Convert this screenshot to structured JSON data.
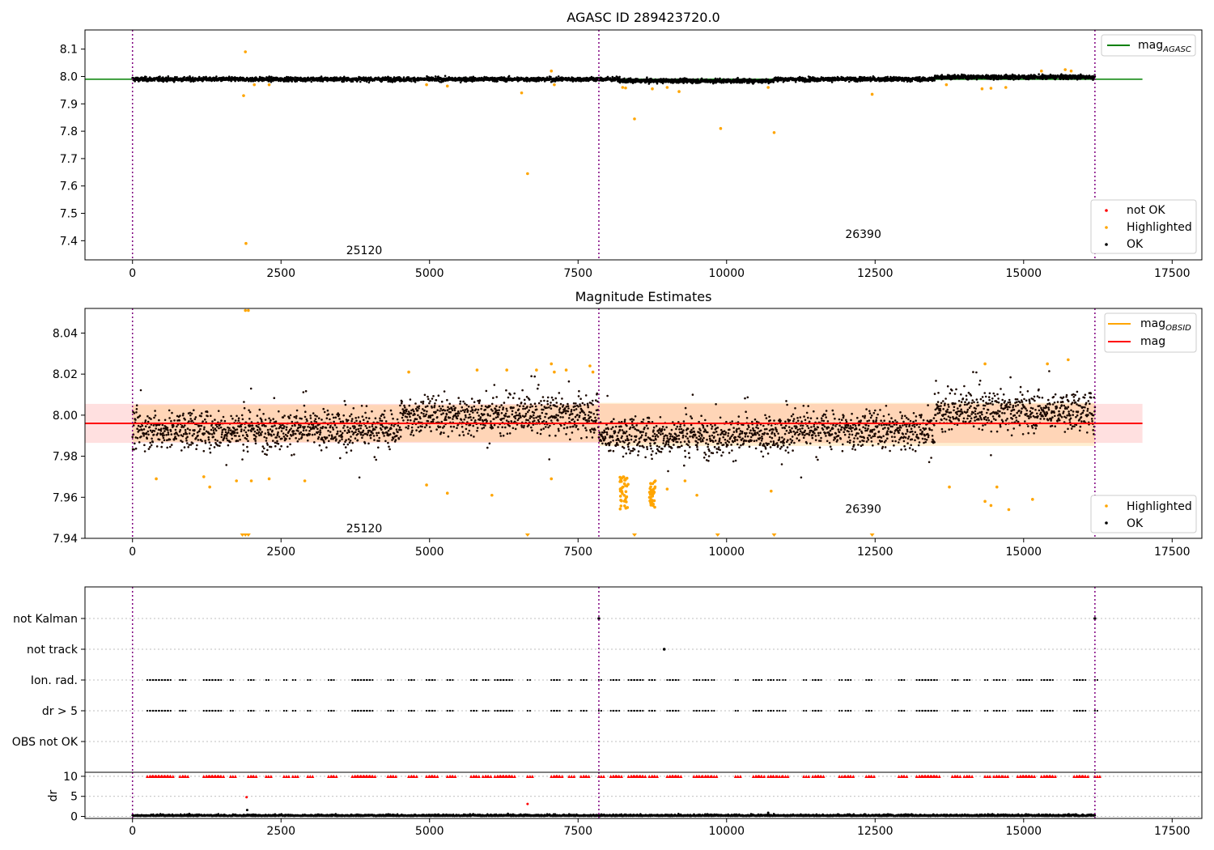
{
  "chart_data": [
    {
      "type": "scatter",
      "title": "AGASC ID 289423720.0",
      "xlim": [
        -800,
        18000
      ],
      "ylim": [
        7.33,
        8.17
      ],
      "xticks": [
        0,
        2500,
        5000,
        7500,
        10000,
        12500,
        15000,
        17500
      ],
      "yticks": [
        7.4,
        7.5,
        7.6,
        7.7,
        7.8,
        7.9,
        8.0,
        8.1
      ],
      "obsid_boundaries": [
        0,
        7850,
        16200
      ],
      "obsid_labels": [
        {
          "text": "25120",
          "x": 3900,
          "y": 7.35
        },
        {
          "text": "26390",
          "x": 12300,
          "y": 7.41
        }
      ],
      "reference_line": {
        "name": "mag_AGASC",
        "value": 7.99,
        "x_range": [
          -800,
          17000
        ],
        "color": "#008000"
      },
      "ok_band": {
        "center": 7.99,
        "spread": 0.012,
        "x_range": [
          0,
          16200
        ]
      },
      "highlighted_points": [
        {
          "x": 1900,
          "y": 8.09
        },
        {
          "x": 1870,
          "y": 7.93
        },
        {
          "x": 1910,
          "y": 7.39
        },
        {
          "x": 2050,
          "y": 7.97
        },
        {
          "x": 2300,
          "y": 7.97
        },
        {
          "x": 4950,
          "y": 7.97
        },
        {
          "x": 5300,
          "y": 7.965
        },
        {
          "x": 6550,
          "y": 7.94
        },
        {
          "x": 6650,
          "y": 7.645
        },
        {
          "x": 7050,
          "y": 8.02
        },
        {
          "x": 7100,
          "y": 7.97
        },
        {
          "x": 8250,
          "y": 7.96
        },
        {
          "x": 8300,
          "y": 7.958
        },
        {
          "x": 8450,
          "y": 7.845
        },
        {
          "x": 8750,
          "y": 7.955
        },
        {
          "x": 9000,
          "y": 7.96
        },
        {
          "x": 9200,
          "y": 7.945
        },
        {
          "x": 9900,
          "y": 7.81
        },
        {
          "x": 10800,
          "y": 7.795
        },
        {
          "x": 10700,
          "y": 7.96
        },
        {
          "x": 12450,
          "y": 7.935
        },
        {
          "x": 13700,
          "y": 7.97
        },
        {
          "x": 14300,
          "y": 7.955
        },
        {
          "x": 14450,
          "y": 7.957
        },
        {
          "x": 14700,
          "y": 7.96
        },
        {
          "x": 15300,
          "y": 8.02
        },
        {
          "x": 15700,
          "y": 8.025
        },
        {
          "x": 15800,
          "y": 8.02
        }
      ],
      "legend": {
        "placement": "bottom-right",
        "entries": [
          {
            "label": "not OK",
            "color": "#ff0000",
            "marker": "dot"
          },
          {
            "label": "Highlighted",
            "color": "#ffa500",
            "marker": "dot"
          },
          {
            "label": "OK",
            "color": "#000000",
            "marker": "dot"
          }
        ]
      },
      "legend_top": {
        "placement": "top-right",
        "entries": [
          {
            "label": "mag",
            "subscript": "AGASC",
            "color": "#008000",
            "marker": "line"
          }
        ]
      }
    },
    {
      "type": "scatter",
      "title": "Magnitude Estimates",
      "xlim": [
        -800,
        18000
      ],
      "ylim": [
        7.94,
        8.052
      ],
      "xticks": [
        0,
        2500,
        5000,
        7500,
        10000,
        12500,
        15000,
        17500
      ],
      "yticks": [
        7.94,
        7.96,
        7.98,
        8.0,
        8.02,
        8.04
      ],
      "ytick_labels": [
        "7.94",
        "7.96",
        "7.98",
        "8.00",
        "8.02",
        "8.04"
      ],
      "obsid_boundaries": [
        0,
        7850,
        16200
      ],
      "obsid_labels": [
        {
          "text": "25120",
          "x": 3900,
          "y": 7.943
        },
        {
          "text": "26390",
          "x": 12300,
          "y": 7.9525
        }
      ],
      "mag_line": {
        "name": "mag",
        "value": 7.996,
        "x_range": [
          -800,
          17000
        ],
        "color": "#ff0000"
      },
      "mag_band": {
        "low": 7.9865,
        "high": 8.0055,
        "x_range": [
          -800,
          17000
        ],
        "color": "#ffcccc"
      },
      "mag_obsid_bands": [
        {
          "low": 7.987,
          "high": 8.005,
          "x_range": [
            0,
            7850
          ]
        },
        {
          "low": 7.985,
          "high": 8.006,
          "x_range": [
            7850,
            16200
          ]
        }
      ],
      "highlighted_points": [
        {
          "x": 1900,
          "y": 8.051
        },
        {
          "x": 1950,
          "y": 8.051
        },
        {
          "x": 400,
          "y": 7.969
        },
        {
          "x": 1200,
          "y": 7.97
        },
        {
          "x": 1300,
          "y": 7.965
        },
        {
          "x": 1750,
          "y": 7.968
        },
        {
          "x": 2000,
          "y": 7.968
        },
        {
          "x": 2300,
          "y": 7.969
        },
        {
          "x": 2900,
          "y": 7.968
        },
        {
          "x": 4650,
          "y": 8.021
        },
        {
          "x": 4950,
          "y": 7.966
        },
        {
          "x": 5300,
          "y": 7.962
        },
        {
          "x": 5800,
          "y": 8.022
        },
        {
          "x": 6050,
          "y": 7.961
        },
        {
          "x": 6300,
          "y": 8.022
        },
        {
          "x": 6800,
          "y": 8.022
        },
        {
          "x": 7050,
          "y": 8.025
        },
        {
          "x": 7100,
          "y": 8.021
        },
        {
          "x": 7300,
          "y": 8.022
        },
        {
          "x": 7050,
          "y": 7.969
        },
        {
          "x": 7700,
          "y": 8.024
        },
        {
          "x": 7750,
          "y": 8.021
        },
        {
          "x": 8800,
          "y": 7.968
        },
        {
          "x": 9000,
          "y": 7.964
        },
        {
          "x": 9300,
          "y": 7.968
        },
        {
          "x": 9500,
          "y": 7.961
        },
        {
          "x": 10750,
          "y": 7.963
        },
        {
          "x": 13750,
          "y": 7.965
        },
        {
          "x": 14350,
          "y": 7.958
        },
        {
          "x": 14450,
          "y": 7.956
        },
        {
          "x": 14550,
          "y": 7.965
        },
        {
          "x": 14750,
          "y": 7.954
        },
        {
          "x": 15150,
          "y": 7.959
        },
        {
          "x": 14350,
          "y": 8.025
        },
        {
          "x": 15400,
          "y": 8.025
        },
        {
          "x": 15750,
          "y": 8.027
        }
      ],
      "clipped_low_points": [
        1850,
        1900,
        1950,
        6650,
        8450,
        9850,
        10800,
        12450
      ],
      "dips": [
        {
          "x_range": [
            8200,
            8350
          ],
          "low": 7.954,
          "high": 7.97
        },
        {
          "x_range": [
            8700,
            8800
          ],
          "low": 7.955,
          "high": 7.968
        }
      ],
      "legend": {
        "placement": "bottom-right",
        "entries": [
          {
            "label": "Highlighted",
            "color": "#ffa500",
            "marker": "dot"
          },
          {
            "label": "OK",
            "color": "#000000",
            "marker": "dot"
          }
        ]
      },
      "legend_top": {
        "placement": "top-right",
        "entries": [
          {
            "label": "mag",
            "subscript": "OBSID",
            "color": "#ffa500",
            "marker": "line"
          },
          {
            "label": "mag",
            "subscript": "",
            "color": "#ff0000",
            "marker": "line"
          }
        ]
      }
    },
    {
      "type": "scatter",
      "title": "",
      "xlim": [
        -800,
        18000
      ],
      "xticks": [
        0,
        2500,
        5000,
        7500,
        10000,
        12500,
        15000,
        17500
      ],
      "obsid_boundaries": [
        0,
        7850,
        16200
      ],
      "flag_rows": [
        "not Kalman",
        "not track",
        "Ion. rad.",
        "dr > 5",
        "OBS not OK"
      ],
      "flag_points": {
        "not Kalman": [
          7850,
          16200
        ],
        "not track": [
          8950
        ],
        "Ion. rad.": [],
        "dr > 5": [],
        "OBS not OK": []
      },
      "periodic_flags": [
        "Ion. rad.",
        "dr > 5"
      ],
      "periodic_x": [
        250,
        300,
        350,
        400,
        450,
        500,
        550,
        600,
        800,
        850,
        1200,
        1250,
        1300,
        1350,
        1400,
        1450,
        1650,
        1950,
        2000,
        2250,
        2550,
        2700,
        2950,
        3300,
        3350,
        3700,
        3750,
        3800,
        3850,
        3900,
        3950,
        4000,
        4300,
        4350,
        4650,
        4700,
        4950,
        5000,
        5050,
        5300,
        5350,
        5700,
        5750,
        5900,
        5950,
        6100,
        6150,
        6200,
        6250,
        6300,
        6350,
        6650,
        7050,
        7100,
        7150,
        7350,
        7550,
        7600,
        7850,
        8050,
        8100,
        8150,
        8350,
        8400,
        8450,
        8500,
        8550,
        8700,
        8750,
        9000,
        9050,
        9100,
        9150,
        9450,
        9500,
        9600,
        9650,
        9750,
        10150,
        10450,
        10500,
        10550,
        10700,
        10750,
        10850,
        10950,
        11300,
        11450,
        11500,
        11550,
        11900,
        12000,
        12050,
        12350,
        12400,
        12900,
        12950,
        13200,
        13250,
        13300,
        13350,
        13400,
        13450,
        13500,
        13800,
        13850,
        14000,
        14050,
        14350,
        14500,
        14550,
        14650,
        14900,
        14950,
        15000,
        15050,
        15100,
        15300,
        15350,
        15400,
        15450,
        15850,
        15900,
        15950,
        16000,
        16200
      ]
    },
    {
      "type": "scatter",
      "title": "",
      "ylabel": "dr",
      "xlim": [
        -800,
        18000
      ],
      "ylim": [
        -0.5,
        11
      ],
      "yticks": [
        0,
        5,
        10
      ],
      "xticks": [
        0,
        2500,
        5000,
        7500,
        10000,
        12500,
        15000,
        17500
      ],
      "obsid_boundaries": [
        0,
        7850,
        16200
      ],
      "gridlines": [
        0,
        5,
        10
      ],
      "capped_value": 10,
      "outliers": [
        {
          "x": 1920,
          "y": 4.8
        },
        {
          "x": 6650,
          "y": 3.1
        },
        {
          "x": 1930,
          "y": 1.6
        },
        {
          "x": 10700,
          "y": 0.9
        }
      ]
    }
  ]
}
